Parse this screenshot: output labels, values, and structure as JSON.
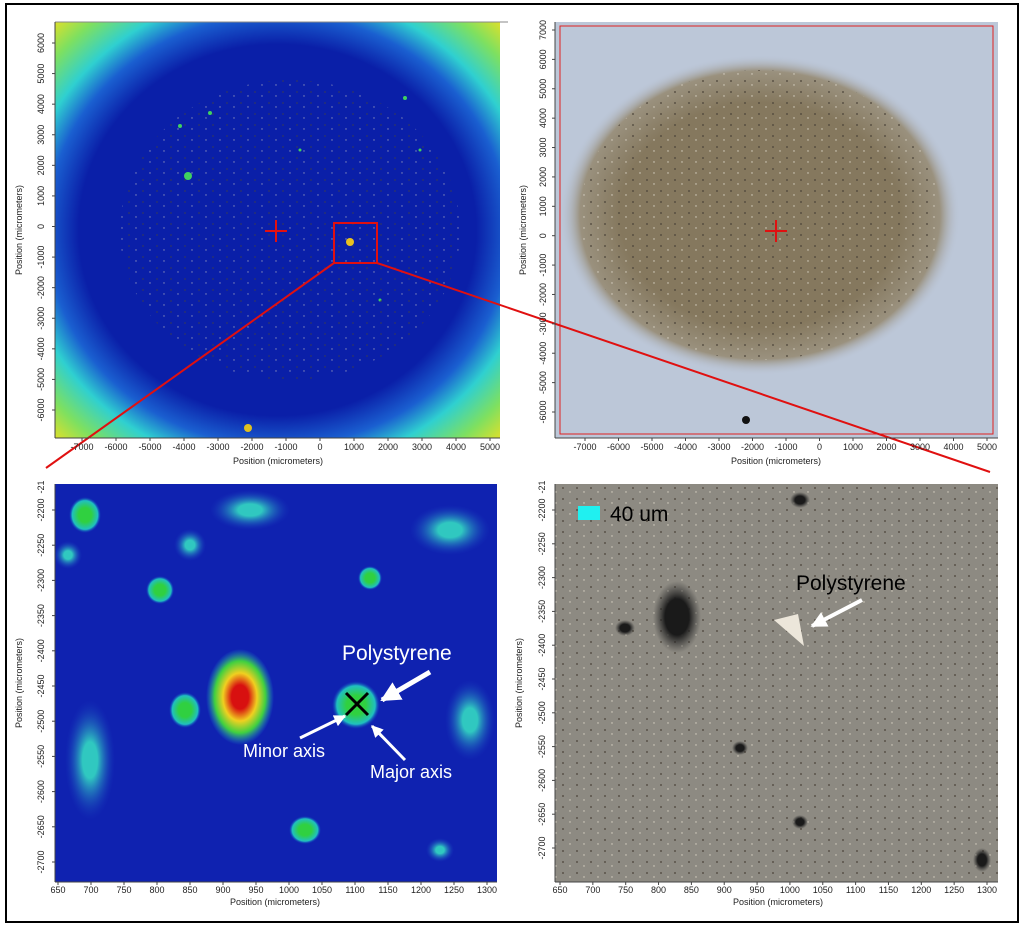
{
  "panels": [
    {
      "x_label": "Position (micrometers)",
      "y_label": "Position (micrometers)",
      "xticks": [
        -7000,
        -6000,
        -5000,
        -4000,
        -3000,
        -2000,
        -1000,
        0,
        1000,
        2000,
        3000,
        4000,
        5000
      ],
      "yticks": [
        6000,
        5000,
        4000,
        3000,
        2000,
        1000,
        0,
        -1000,
        -2000,
        -3000,
        -4000,
        -5000,
        -6000
      ]
    },
    {
      "x_label": "Position (micrometers)",
      "y_label": "Position (micrometers)",
      "xticks": [
        -7000,
        -6000,
        -5000,
        -4000,
        -3000,
        -2000,
        -1000,
        0,
        1000,
        2000,
        3000,
        4000,
        5000
      ],
      "yticks": [
        7000,
        6000,
        5000,
        4000,
        3000,
        2000,
        1000,
        0,
        -1000,
        -2000,
        -3000,
        -4000,
        -5000,
        -6000
      ]
    },
    {
      "x_label": "Position (micrometers)",
      "y_label": "Position (micrometers)",
      "xticks": [
        650,
        700,
        750,
        800,
        850,
        900,
        950,
        1000,
        1050,
        1100,
        1150,
        1200,
        1250,
        1300
      ],
      "yticks": [
        -2200,
        -2250,
        -2300,
        -2350,
        -2400,
        -2450,
        -2500,
        -2550,
        -2600,
        -2650,
        -2700
      ],
      "y_tick_clipped": "-21"
    },
    {
      "x_label": "Position (micrometers)",
      "y_label": "Position (micrometers)",
      "xticks": [
        650,
        700,
        750,
        800,
        850,
        900,
        950,
        1000,
        1050,
        1100,
        1150,
        1200,
        1250,
        1300
      ],
      "yticks": [
        -2200,
        -2250,
        -2300,
        -2350,
        -2400,
        -2450,
        -2500,
        -2550,
        -2600,
        -2650,
        -2700
      ],
      "y_tick_clipped": "-21"
    }
  ],
  "annotations": {
    "polystyrene_left": "Polystyrene",
    "minor_axis": "Minor axis",
    "major_axis": "Major axis",
    "scale_bar": "40 um",
    "polystyrene_right": "Polystyrene"
  }
}
